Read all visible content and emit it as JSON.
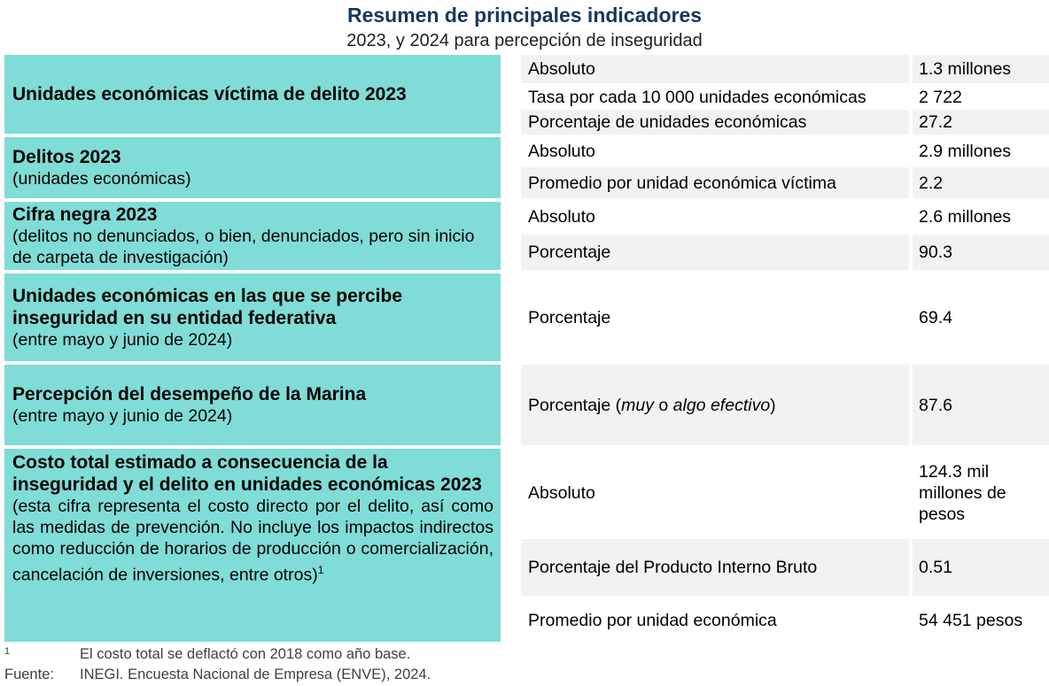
{
  "title": "Resumen de principales indicadores",
  "subtitle": "2023, y 2024 para percepción de inseguridad",
  "blocks": [
    {
      "heading": "Unidades económicas víctima de delito 2023",
      "note": ""
    },
    {
      "heading": "Delitos 2023",
      "note": "(unidades económicas)"
    },
    {
      "heading": "Cifra negra 2023",
      "note": "(delitos no denunciados, o bien, denunciados, pero sin inicio de carpeta de investigación)"
    },
    {
      "heading": "Unidades económicas en las que se percibe inseguridad en su entidad federativa",
      "note": "(entre mayo y junio de 2024)"
    },
    {
      "heading": "Percepción del desempeño de la Marina",
      "note": "(entre mayo y junio de 2024)"
    },
    {
      "heading": "Costo total estimado a consecuencia de la inseguridad y el delito en unidades económicas 2023",
      "note": "(esta cifra representa el costo directo por el delito, así como las medidas de prevención. No incluye los impactos indirectos como reducción de horarios de producción o comercialización, cancelación de inversiones, entre otros)",
      "note_sup": "1"
    }
  ],
  "rows": [
    {
      "label": "Absoluto",
      "value": "1.3 millones"
    },
    {
      "label": "Tasa por cada 10 000 unidades económicas",
      "value": "2 722"
    },
    {
      "label": "Porcentaje de unidades económicas",
      "value": "27.2"
    },
    {
      "label": "Absoluto",
      "value": "2.9 millones"
    },
    {
      "label": "Promedio por unidad económica víctima",
      "value": "2.2"
    },
    {
      "label": "Absoluto",
      "value": "2.6 millones"
    },
    {
      "label": "Porcentaje",
      "value": "90.3"
    },
    {
      "label": "Porcentaje",
      "value": "69.4"
    },
    {
      "label": "Porcentaje (",
      "label_i1": "muy",
      "label_m": " o ",
      "label_i2": "algo efectivo",
      "label_e": ")",
      "value": "87.6"
    },
    {
      "label": "Absoluto",
      "value": "124.3 mil millones de pesos"
    },
    {
      "label": "Porcentaje del Producto Interno Bruto",
      "value": "0.51"
    },
    {
      "label": "Promedio por unidad económica",
      "value": "54 451 pesos"
    }
  ],
  "footnotes": {
    "n1_mark": "1",
    "n1_text": "El costo total se deflactó con 2018 como año base.",
    "source_label": "Fuente:",
    "source_text": "INEGI. Encuesta Nacional de Empresa (ENVE), 2024."
  }
}
